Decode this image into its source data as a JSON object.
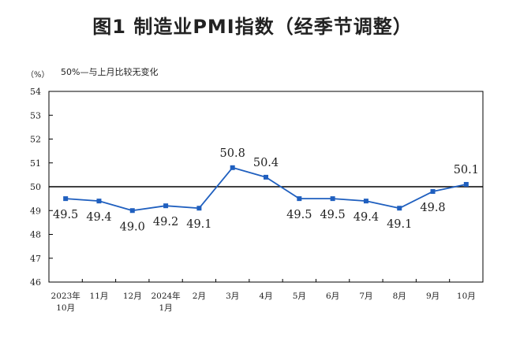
{
  "page": {
    "title": "图1  制造业PMI指数（经季节调整）",
    "unit_label": "（%）",
    "reference_note": "50%—与上月比较无变化"
  },
  "colors": {
    "series": "#1f5fbf",
    "reference_line": "#000000",
    "frame": "#000000",
    "text": "#222222"
  },
  "chart_data": {
    "type": "line",
    "title": "图1  制造业PMI指数（经季节调整）",
    "xlabel": "",
    "ylabel": "",
    "ylim": [
      46,
      54
    ],
    "yticks": [
      46,
      47,
      48,
      49,
      50,
      51,
      52,
      53,
      54
    ],
    "reference_line": 50,
    "grid": false,
    "legend": "none",
    "categories": [
      [
        "2023年",
        "10月"
      ],
      [
        "11月"
      ],
      [
        "12月"
      ],
      [
        "2024年",
        "1月"
      ],
      [
        "2月"
      ],
      [
        "3月"
      ],
      [
        "4月"
      ],
      [
        "5月"
      ],
      [
        "6月"
      ],
      [
        "7月"
      ],
      [
        "8月"
      ],
      [
        "9月"
      ],
      [
        "10月"
      ]
    ],
    "series": [
      {
        "values": [
          49.5,
          49.4,
          49.0,
          49.2,
          49.1,
          50.8,
          50.4,
          49.5,
          49.5,
          49.4,
          49.1,
          49.8,
          50.1
        ],
        "labels": [
          "49.5",
          "49.4",
          "49.0",
          "49.2",
          "49.1",
          "50.8",
          "50.4",
          "49.5",
          "49.5",
          "49.4",
          "49.1",
          "49.8",
          "50.1"
        ],
        "label_positions": [
          "below",
          "below",
          "below",
          "below",
          "below",
          "above",
          "above",
          "below",
          "below",
          "below",
          "below",
          "below",
          "above"
        ]
      }
    ]
  }
}
